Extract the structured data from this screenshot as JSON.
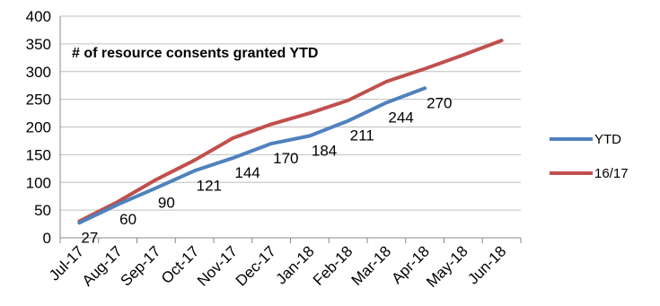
{
  "chart_data": {
    "type": "line",
    "title": "# of resource consents granted YTD",
    "categories": [
      "Jul-17",
      "Aug-17",
      "Sep-17",
      "Oct-17",
      "Nov-17",
      "Dec-17",
      "Jan-18",
      "Feb-18",
      "Mar-18",
      "Apr-18",
      "May-18",
      "Jun-18"
    ],
    "ylim": [
      0,
      400
    ],
    "yticks": [
      0,
      50,
      100,
      150,
      200,
      250,
      300,
      350,
      400
    ],
    "grid": true,
    "legend_position": "right",
    "series": [
      {
        "name": "YTD",
        "color": "#4F81BD",
        "values": [
          27,
          60,
          90,
          121,
          144,
          170,
          184,
          211,
          244,
          270,
          null,
          null
        ],
        "data_labels": true
      },
      {
        "name": "16/17",
        "color": "#C0504D",
        "values": [
          30,
          65,
          105,
          140,
          180,
          205,
          225,
          248,
          282,
          305,
          330,
          356
        ],
        "data_labels": false
      }
    ]
  }
}
